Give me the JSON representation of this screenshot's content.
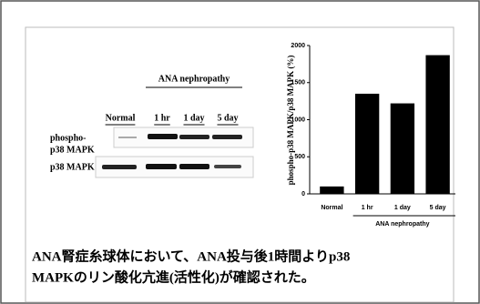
{
  "blot": {
    "group_label": "ANA nephropathy",
    "lanes": [
      "Normal",
      "1 hr",
      "1 day",
      "5 day"
    ],
    "rows": [
      [
        "phospho-",
        "p38 MAPK"
      ],
      [
        "p38 MAPK"
      ]
    ]
  },
  "chart_data": {
    "type": "bar",
    "y_label": "phospho-p38 MAPK/p38 MAPK (%)",
    "x_label": "ANA nephropathy",
    "categories": [
      "Normal",
      "1 hr",
      "1 day",
      "5 day"
    ],
    "values": [
      100,
      1350,
      1220,
      1870
    ],
    "color": "#000000",
    "ylim": [
      0,
      2000
    ],
    "yticks": [
      0,
      500,
      1000,
      1500,
      2000
    ]
  },
  "caption": [
    "ANA腎症糸球体において、ANA投与後1時間よりp38",
    "MAPKのリン酸化亢進(活性化)が確認された。"
  ]
}
